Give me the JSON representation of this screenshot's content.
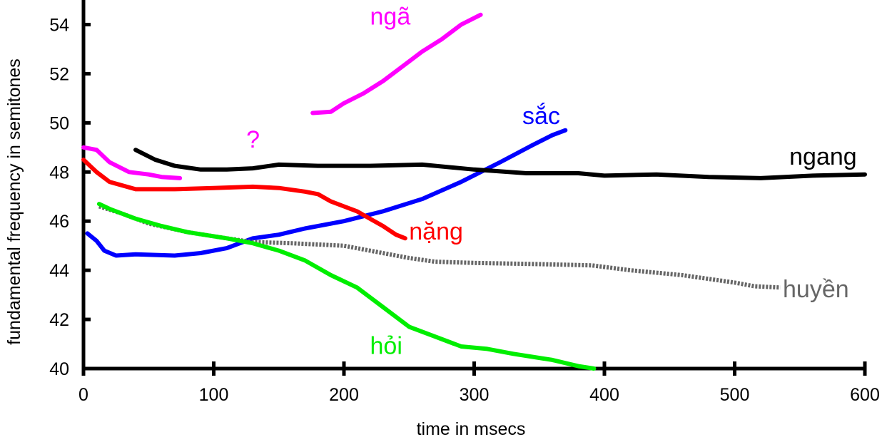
{
  "chart_data": {
    "type": "line",
    "xlabel": "time in msecs",
    "ylabel": "fundamental frequency in semitones",
    "xlim": [
      0,
      600
    ],
    "ylim": [
      40,
      55
    ],
    "xticks": [
      "0",
      "100",
      "200",
      "300",
      "400",
      "500",
      "600"
    ],
    "yticks": [
      "40",
      "42",
      "44",
      "46",
      "48",
      "50",
      "52",
      "54"
    ],
    "grid": false,
    "series": [
      {
        "name": "ngã",
        "color": "#ff00ff",
        "style": "solid",
        "points": [
          [
            176,
            50.4
          ],
          [
            190,
            50.45
          ],
          [
            200,
            50.8
          ],
          [
            215,
            51.2
          ],
          [
            230,
            51.7
          ],
          [
            245,
            52.3
          ],
          [
            260,
            52.9
          ],
          [
            275,
            53.4
          ],
          [
            290,
            54.0
          ],
          [
            305,
            54.4
          ]
        ]
      },
      {
        "name": "?",
        "color": "#ff00ff",
        "style": "solid",
        "points": [
          [
            0,
            49.0
          ],
          [
            10,
            48.9
          ],
          [
            20,
            48.4
          ],
          [
            35,
            48.0
          ],
          [
            50,
            47.9
          ],
          [
            60,
            47.8
          ],
          [
            74,
            47.75
          ]
        ]
      },
      {
        "name": "sắc",
        "color": "#0000ff",
        "style": "solid",
        "points": [
          [
            3,
            45.5
          ],
          [
            10,
            45.2
          ],
          [
            16,
            44.8
          ],
          [
            25,
            44.6
          ],
          [
            40,
            44.65
          ],
          [
            70,
            44.6
          ],
          [
            90,
            44.7
          ],
          [
            110,
            44.9
          ],
          [
            130,
            45.3
          ],
          [
            150,
            45.45
          ],
          [
            170,
            45.7
          ],
          [
            200,
            46.0
          ],
          [
            230,
            46.4
          ],
          [
            260,
            46.9
          ],
          [
            290,
            47.6
          ],
          [
            320,
            48.4
          ],
          [
            345,
            49.1
          ],
          [
            360,
            49.5
          ],
          [
            370,
            49.7
          ]
        ]
      },
      {
        "name": "ngang",
        "color": "#000000",
        "style": "solid",
        "points": [
          [
            40,
            48.9
          ],
          [
            55,
            48.5
          ],
          [
            70,
            48.25
          ],
          [
            90,
            48.1
          ],
          [
            110,
            48.1
          ],
          [
            130,
            48.15
          ],
          [
            150,
            48.3
          ],
          [
            180,
            48.25
          ],
          [
            220,
            48.25
          ],
          [
            260,
            48.3
          ],
          [
            300,
            48.1
          ],
          [
            340,
            47.95
          ],
          [
            380,
            47.95
          ],
          [
            400,
            47.85
          ],
          [
            440,
            47.9
          ],
          [
            480,
            47.8
          ],
          [
            520,
            47.75
          ],
          [
            560,
            47.85
          ],
          [
            600,
            47.9
          ]
        ]
      },
      {
        "name": "nặng",
        "color": "#ff0000",
        "style": "solid",
        "points": [
          [
            0,
            48.5
          ],
          [
            10,
            48.0
          ],
          [
            20,
            47.6
          ],
          [
            40,
            47.3
          ],
          [
            70,
            47.3
          ],
          [
            100,
            47.35
          ],
          [
            130,
            47.4
          ],
          [
            150,
            47.35
          ],
          [
            170,
            47.2
          ],
          [
            180,
            47.1
          ],
          [
            190,
            46.8
          ],
          [
            200,
            46.6
          ],
          [
            210,
            46.4
          ],
          [
            220,
            46.1
          ],
          [
            230,
            45.8
          ],
          [
            240,
            45.45
          ],
          [
            247,
            45.3
          ]
        ]
      },
      {
        "name": "huyền",
        "color": "#666666",
        "style": "dotted",
        "points": [
          [
            12,
            46.6
          ],
          [
            30,
            46.3
          ],
          [
            50,
            45.9
          ],
          [
            80,
            45.55
          ],
          [
            110,
            45.3
          ],
          [
            130,
            45.15
          ],
          [
            160,
            45.1
          ],
          [
            200,
            45.0
          ],
          [
            220,
            44.8
          ],
          [
            250,
            44.5
          ],
          [
            270,
            44.35
          ],
          [
            300,
            44.3
          ],
          [
            350,
            44.25
          ],
          [
            390,
            44.2
          ],
          [
            420,
            44.0
          ],
          [
            460,
            43.8
          ],
          [
            500,
            43.5
          ],
          [
            515,
            43.35
          ],
          [
            535,
            43.3
          ]
        ]
      },
      {
        "name": "hỏi",
        "color": "#00ee00",
        "style": "solid",
        "points": [
          [
            12,
            46.7
          ],
          [
            20,
            46.5
          ],
          [
            40,
            46.1
          ],
          [
            60,
            45.8
          ],
          [
            80,
            45.55
          ],
          [
            110,
            45.3
          ],
          [
            130,
            45.1
          ],
          [
            150,
            44.8
          ],
          [
            170,
            44.4
          ],
          [
            190,
            43.8
          ],
          [
            210,
            43.3
          ],
          [
            230,
            42.5
          ],
          [
            250,
            41.7
          ],
          [
            270,
            41.3
          ],
          [
            290,
            40.9
          ],
          [
            310,
            40.8
          ],
          [
            330,
            40.6
          ],
          [
            360,
            40.35
          ],
          [
            380,
            40.1
          ],
          [
            392,
            40.0
          ]
        ]
      }
    ],
    "labels": [
      {
        "text": "ngã",
        "color": "#ff00ff",
        "at": [
          220,
          54.0
        ]
      },
      {
        "text": "?",
        "color": "#ff00ff",
        "at": [
          125,
          49.0
        ]
      },
      {
        "text": "sắc",
        "color": "#0000ff",
        "at": [
          337,
          49.95
        ]
      },
      {
        "text": "ngang",
        "color": "#000000",
        "at": [
          542,
          48.3
        ]
      },
      {
        "text": "nặng",
        "color": "#ff0000",
        "at": [
          250,
          45.25
        ]
      },
      {
        "text": "huyền",
        "color": "#666666",
        "at": [
          537,
          42.9
        ]
      },
      {
        "text": "hỏi",
        "color": "#00ee00",
        "at": [
          220,
          40.6
        ]
      }
    ]
  }
}
